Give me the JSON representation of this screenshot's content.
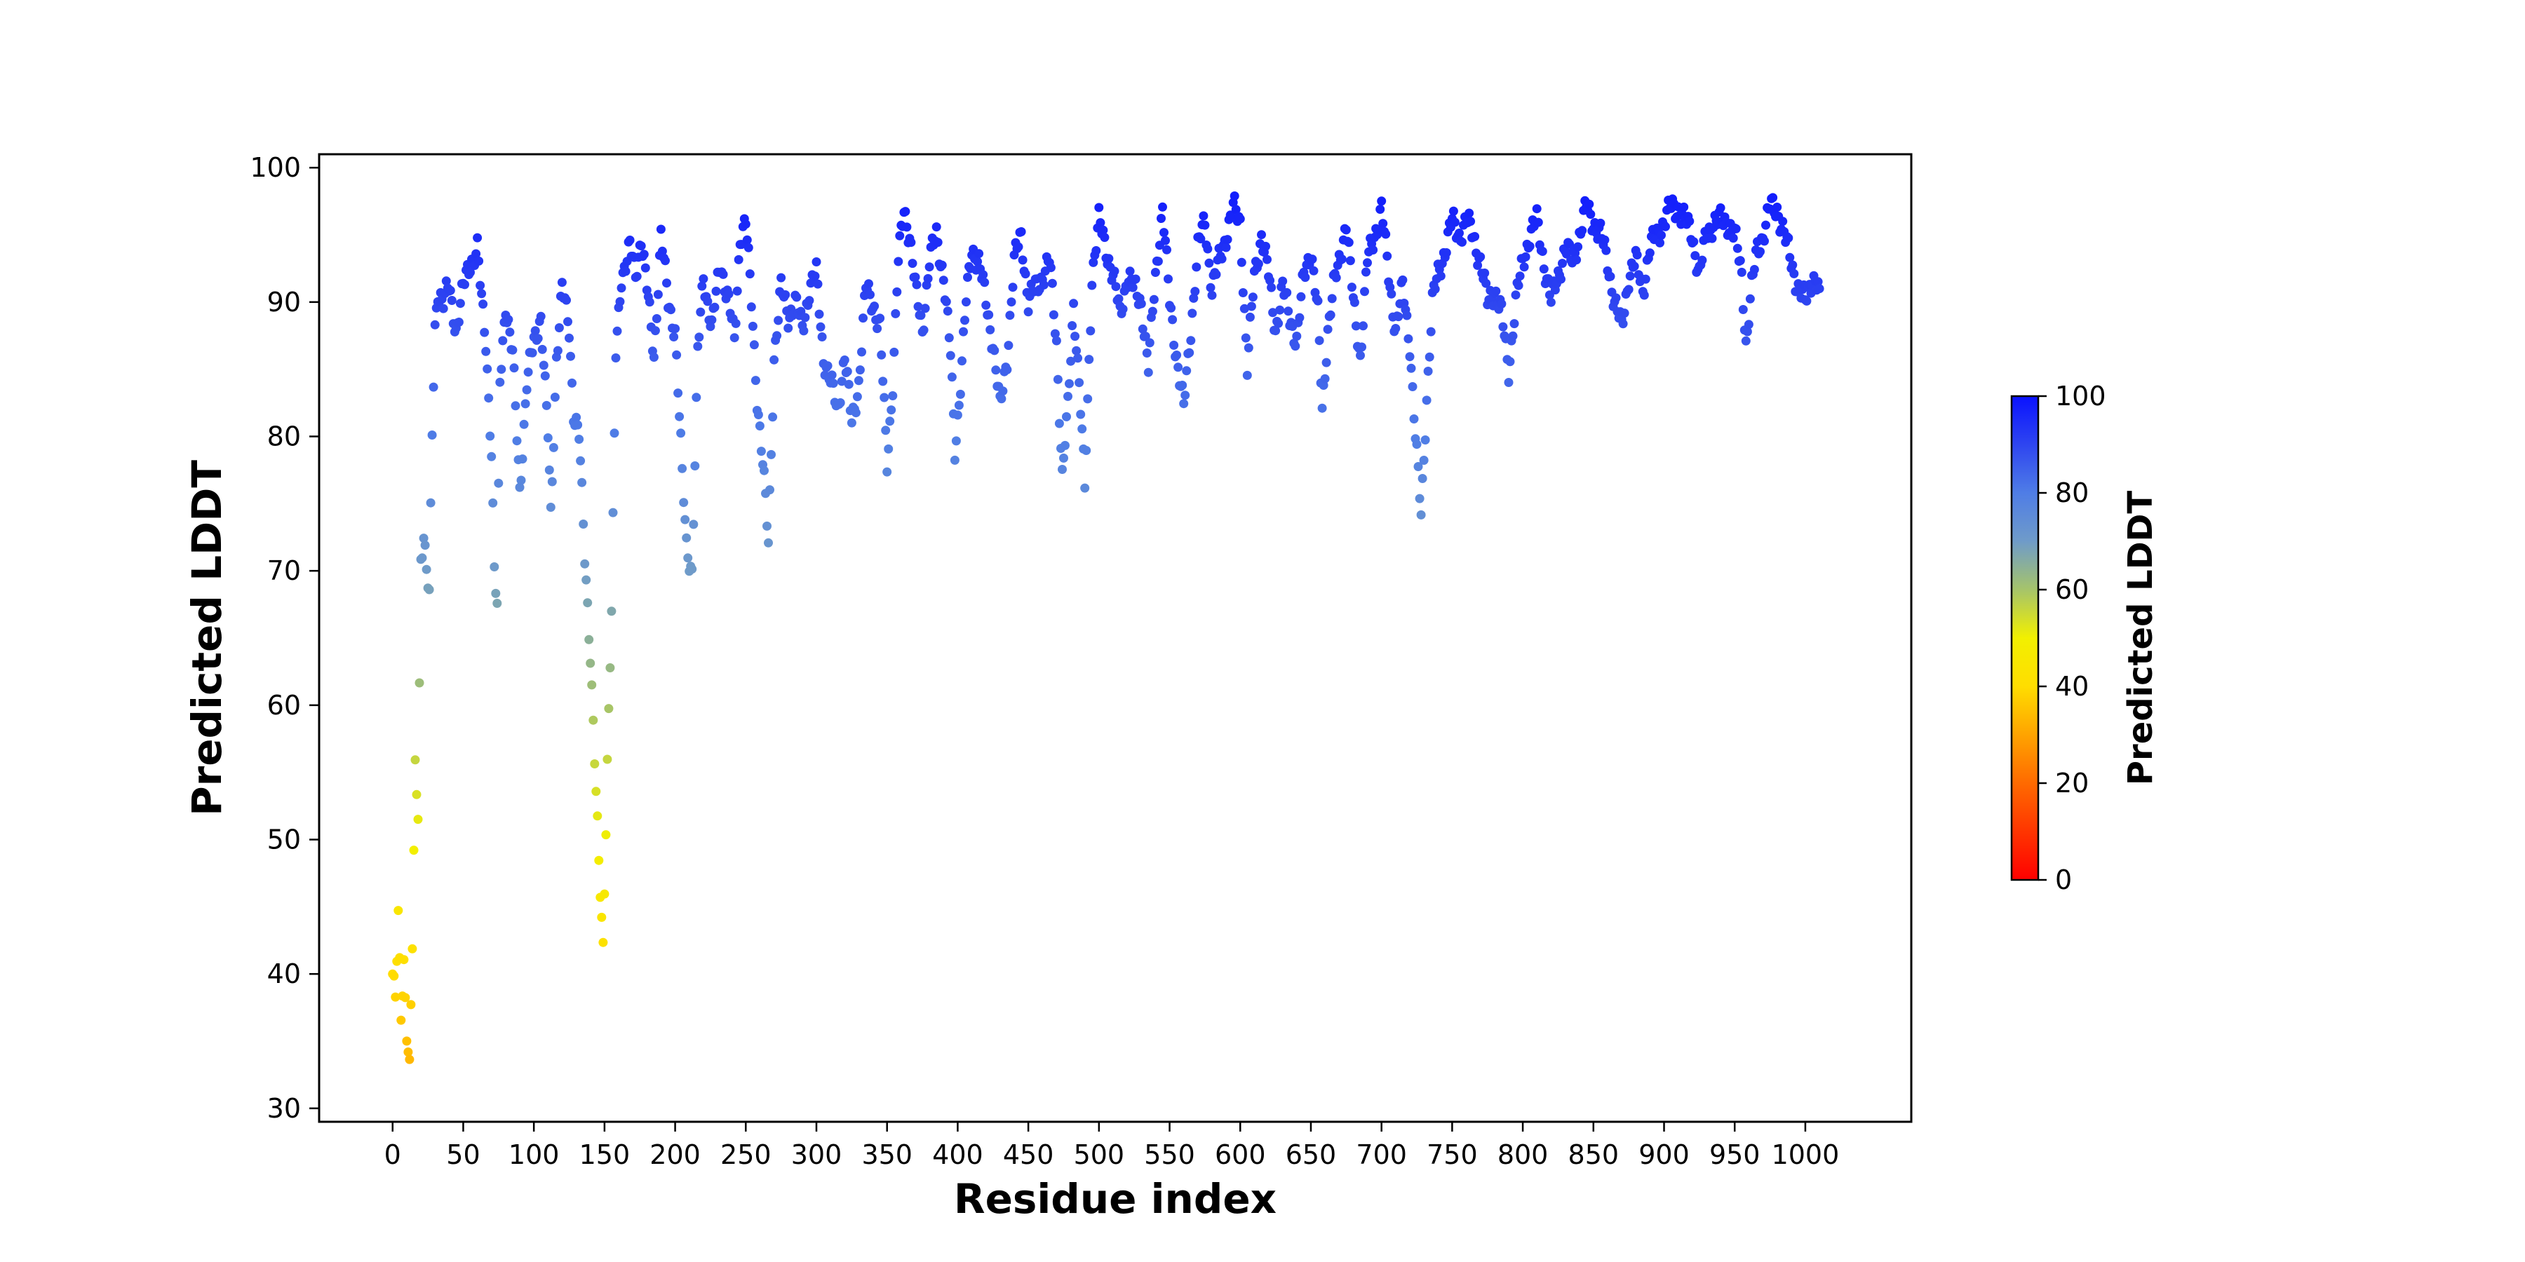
{
  "chart_data": {
    "type": "scatter",
    "title": "",
    "xlabel": "Residue index",
    "ylabel": "Predicted LDDT",
    "xlim": [
      -52,
      1075
    ],
    "ylim": [
      29,
      101
    ],
    "xticks": [
      0,
      50,
      100,
      150,
      200,
      250,
      300,
      350,
      400,
      450,
      500,
      550,
      600,
      650,
      700,
      750,
      800,
      850,
      900,
      950,
      1000
    ],
    "yticks": [
      30,
      40,
      50,
      60,
      70,
      80,
      90,
      100
    ],
    "grid": false,
    "legend": "none",
    "marker_color_by": "y",
    "colormap": {
      "stops": [
        {
          "value": 0,
          "color": "#ff0000"
        },
        {
          "value": 20,
          "color": "#ff6a00"
        },
        {
          "value": 40,
          "color": "#ffdd00"
        },
        {
          "value": 50,
          "color": "#f2f000"
        },
        {
          "value": 60,
          "color": "#a6c46a"
        },
        {
          "value": 70,
          "color": "#6f9bc9"
        },
        {
          "value": 80,
          "color": "#4f7de6"
        },
        {
          "value": 90,
          "color": "#2e45f0"
        },
        {
          "value": 100,
          "color": "#0a12ff"
        }
      ]
    },
    "colorbar": {
      "label": "Predicted LDDT",
      "range": [
        0,
        100
      ],
      "ticks": [
        0,
        20,
        40,
        60,
        80,
        100
      ]
    },
    "anchors": [
      [
        0,
        40
      ],
      [
        2,
        38
      ],
      [
        4,
        44
      ],
      [
        6,
        37
      ],
      [
        8,
        41
      ],
      [
        10,
        36
      ],
      [
        12,
        33
      ],
      [
        14,
        42
      ],
      [
        16,
        55
      ],
      [
        18,
        52
      ],
      [
        20,
        71
      ],
      [
        22,
        73
      ],
      [
        24,
        70
      ],
      [
        26,
        68
      ],
      [
        28,
        80
      ],
      [
        30,
        88
      ],
      [
        32,
        91
      ],
      [
        36,
        90
      ],
      [
        40,
        91
      ],
      [
        45,
        88
      ],
      [
        50,
        91
      ],
      [
        55,
        93
      ],
      [
        60,
        94
      ],
      [
        63,
        90
      ],
      [
        66,
        87
      ],
      [
        70,
        79
      ],
      [
        72,
        70
      ],
      [
        74,
        67
      ],
      [
        76,
        84
      ],
      [
        80,
        90
      ],
      [
        85,
        86
      ],
      [
        90,
        76
      ],
      [
        95,
        84
      ],
      [
        100,
        87
      ],
      [
        105,
        89
      ],
      [
        110,
        80
      ],
      [
        112,
        74
      ],
      [
        116,
        86
      ],
      [
        120,
        91
      ],
      [
        125,
        88
      ],
      [
        128,
        82
      ],
      [
        132,
        80
      ],
      [
        136,
        71
      ],
      [
        140,
        64
      ],
      [
        143,
        56
      ],
      [
        146,
        48
      ],
      [
        149,
        42
      ],
      [
        152,
        56
      ],
      [
        155,
        67
      ],
      [
        158,
        86
      ],
      [
        162,
        92
      ],
      [
        168,
        94
      ],
      [
        172,
        92
      ],
      [
        176,
        95
      ],
      [
        180,
        91
      ],
      [
        185,
        86
      ],
      [
        190,
        95
      ],
      [
        195,
        90
      ],
      [
        200,
        88
      ],
      [
        205,
        77
      ],
      [
        208,
        72
      ],
      [
        212,
        70
      ],
      [
        216,
        86
      ],
      [
        220,
        92
      ],
      [
        226,
        88
      ],
      [
        232,
        93
      ],
      [
        238,
        90
      ],
      [
        242,
        87
      ],
      [
        246,
        95
      ],
      [
        250,
        96
      ],
      [
        254,
        90
      ],
      [
        258,
        83
      ],
      [
        262,
        78
      ],
      [
        266,
        72
      ],
      [
        270,
        86
      ],
      [
        275,
        91
      ],
      [
        280,
        89
      ],
      [
        285,
        90
      ],
      [
        290,
        88
      ],
      [
        295,
        91
      ],
      [
        300,
        92
      ],
      [
        305,
        86
      ],
      [
        310,
        84
      ],
      [
        315,
        82
      ],
      [
        320,
        86
      ],
      [
        325,
        81
      ],
      [
        330,
        84
      ],
      [
        335,
        91
      ],
      [
        340,
        90
      ],
      [
        345,
        88
      ],
      [
        350,
        78
      ],
      [
        354,
        84
      ],
      [
        358,
        93
      ],
      [
        362,
        97
      ],
      [
        366,
        95
      ],
      [
        370,
        91
      ],
      [
        375,
        88
      ],
      [
        380,
        93
      ],
      [
        385,
        95
      ],
      [
        390,
        92
      ],
      [
        395,
        86
      ],
      [
        398,
        79
      ],
      [
        402,
        84
      ],
      [
        406,
        90
      ],
      [
        410,
        94
      ],
      [
        415,
        93
      ],
      [
        420,
        90
      ],
      [
        425,
        87
      ],
      [
        430,
        82
      ],
      [
        435,
        86
      ],
      [
        440,
        93
      ],
      [
        445,
        95
      ],
      [
        450,
        90
      ],
      [
        455,
        91
      ],
      [
        460,
        92
      ],
      [
        465,
        93
      ],
      [
        470,
        87
      ],
      [
        474,
        77
      ],
      [
        478,
        82
      ],
      [
        482,
        90
      ],
      [
        486,
        84
      ],
      [
        490,
        76
      ],
      [
        495,
        92
      ],
      [
        500,
        96
      ],
      [
        505,
        94
      ],
      [
        510,
        92
      ],
      [
        515,
        89
      ],
      [
        520,
        92
      ],
      [
        525,
        91
      ],
      [
        530,
        90
      ],
      [
        535,
        85
      ],
      [
        540,
        92
      ],
      [
        545,
        97
      ],
      [
        550,
        90
      ],
      [
        555,
        86
      ],
      [
        560,
        82
      ],
      [
        565,
        88
      ],
      [
        570,
        94
      ],
      [
        575,
        96
      ],
      [
        580,
        91
      ],
      [
        585,
        93
      ],
      [
        590,
        95
      ],
      [
        595,
        97
      ],
      [
        600,
        96
      ],
      [
        605,
        85
      ],
      [
        610,
        92
      ],
      [
        615,
        95
      ],
      [
        620,
        92
      ],
      [
        625,
        88
      ],
      [
        630,
        91
      ],
      [
        635,
        89
      ],
      [
        640,
        87
      ],
      [
        645,
        92
      ],
      [
        650,
        94
      ],
      [
        655,
        89
      ],
      [
        658,
        82
      ],
      [
        662,
        88
      ],
      [
        666,
        91
      ],
      [
        670,
        93
      ],
      [
        675,
        96
      ],
      [
        680,
        90
      ],
      [
        685,
        86
      ],
      [
        690,
        93
      ],
      [
        695,
        95
      ],
      [
        700,
        97
      ],
      [
        705,
        92
      ],
      [
        710,
        88
      ],
      [
        715,
        91
      ],
      [
        720,
        87
      ],
      [
        724,
        80
      ],
      [
        728,
        74
      ],
      [
        732,
        83
      ],
      [
        736,
        90
      ],
      [
        740,
        92
      ],
      [
        745,
        94
      ],
      [
        750,
        96
      ],
      [
        755,
        95
      ],
      [
        760,
        96
      ],
      [
        765,
        95
      ],
      [
        770,
        93
      ],
      [
        775,
        90
      ],
      [
        780,
        91
      ],
      [
        785,
        89
      ],
      [
        790,
        85
      ],
      [
        795,
        90
      ],
      [
        800,
        93
      ],
      [
        805,
        95
      ],
      [
        810,
        96
      ],
      [
        815,
        93
      ],
      [
        820,
        90
      ],
      [
        825,
        92
      ],
      [
        830,
        94
      ],
      [
        835,
        93
      ],
      [
        840,
        95
      ],
      [
        845,
        97
      ],
      [
        850,
        96
      ],
      [
        855,
        95
      ],
      [
        860,
        93
      ],
      [
        865,
        90
      ],
      [
        870,
        88
      ],
      [
        875,
        92
      ],
      [
        880,
        93
      ],
      [
        885,
        91
      ],
      [
        890,
        94
      ],
      [
        895,
        95
      ],
      [
        900,
        96
      ],
      [
        905,
        97
      ],
      [
        910,
        97
      ],
      [
        915,
        96
      ],
      [
        920,
        95
      ],
      [
        925,
        92
      ],
      [
        930,
        95
      ],
      [
        935,
        96
      ],
      [
        940,
        96
      ],
      [
        945,
        96
      ],
      [
        950,
        95
      ],
      [
        955,
        92
      ],
      [
        958,
        87
      ],
      [
        962,
        91
      ],
      [
        966,
        94
      ],
      [
        970,
        95
      ],
      [
        975,
        97
      ],
      [
        980,
        97
      ],
      [
        985,
        95
      ],
      [
        990,
        93
      ],
      [
        995,
        91
      ],
      [
        1000,
        90
      ],
      [
        1005,
        92
      ],
      [
        1010,
        91
      ]
    ]
  }
}
